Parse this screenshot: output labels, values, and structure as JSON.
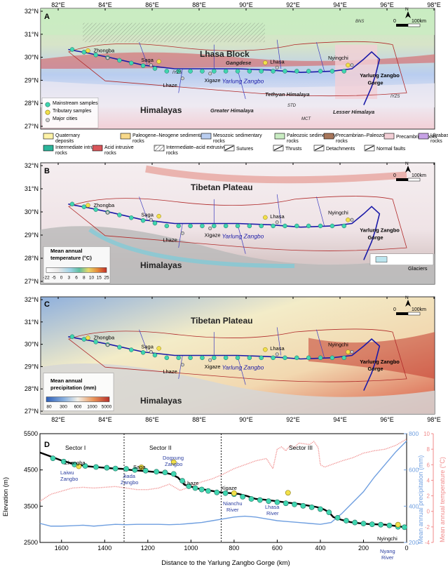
{
  "map_common": {
    "lon_ticks": [
      "82°E",
      "84°E",
      "86°E",
      "88°E",
      "90°E",
      "92°E",
      "94°E",
      "96°E",
      "98°E"
    ],
    "lat_ticks": [
      "32°N",
      "31°N",
      "30°N",
      "29°N",
      "28°N",
      "27°N"
    ],
    "river": "Yarlung Zangbo",
    "gorge": "Yarlung Zangbo Gorge",
    "cities": [
      "Zhongba",
      "Saga",
      "Lhaze",
      "Xigaze",
      "Lhasa",
      "Nyingchi"
    ],
    "scale_zero": "0",
    "scale_label": "100km",
    "north": "N"
  },
  "panel_a": {
    "letter": "A",
    "region_top": "Lhasa Block",
    "region_bottom": "Himalayas",
    "labels": {
      "bns": "BNS",
      "gangdese": "Gangdese",
      "iyzs_w": "IYZS",
      "iyzs_e": "IYZS",
      "tethyan": "Tethyan Himalaya",
      "greater": "Greater Himalaya",
      "lesser": "Lesser Himalaya",
      "std": "STD",
      "mct": "MCT"
    },
    "inset_legend": [
      "Mainstream samples",
      "Tributary samples",
      "Major cities"
    ],
    "legend": [
      {
        "label": "Quaternary deposits",
        "color": "#fff3a8"
      },
      {
        "label": "Paleogene–Neogene sedimentary rocks",
        "color": "#f8d98a"
      },
      {
        "label": "Mesozoic sedimentary rocks",
        "color": "#b9cdf0"
      },
      {
        "label": "Paleozoic sedimentary rocks",
        "color": "#c9ecc2"
      },
      {
        "label": "Precambrian–Paleozoic rocks",
        "color": "#a8765a"
      },
      {
        "label": "Precambrian rocks",
        "color": "#f3cfd6"
      },
      {
        "label": "Ultrabasic–basic igneous rocks",
        "color": "#c7a3e6"
      },
      {
        "label": "Intermediate intrusive rocks",
        "color": "#2bb59a"
      },
      {
        "label": "Acid intrusive rocks",
        "color": "#d9565a"
      },
      {
        "label": "Intermediate–acid extrusive rocks",
        "color": "hatch"
      },
      {
        "label": "Sutures",
        "color": "line"
      },
      {
        "label": "Thrusts",
        "color": "line"
      },
      {
        "label": "Detachments",
        "color": "line"
      },
      {
        "label": "Normal faults",
        "color": "line"
      }
    ]
  },
  "panel_b": {
    "letter": "B",
    "region_top": "Tibetan Plateau",
    "region_bottom": "Himalayas",
    "colorbar_title": "Mean annual temperature (°C)",
    "colorbar_ticks": [
      "-22",
      "-5",
      "0",
      "3",
      "6",
      "8",
      "10",
      "15",
      "25"
    ],
    "glaciers": "Glaciers"
  },
  "panel_c": {
    "letter": "C",
    "region_top": "Tibetan Plateau",
    "region_bottom": "Himalayas",
    "colorbar_title": "Mean annual precipitation (mm)",
    "colorbar_ticks": [
      "80",
      "300",
      "600",
      "1000",
      "5000"
    ]
  },
  "panel_d": {
    "letter": "D",
    "sectors": [
      "Sector I",
      "Sector II",
      "Sector III"
    ],
    "annotations": {
      "zhongba": "Zhongba",
      "laiwu": "Laiwu Zangbo",
      "saga": "Saga",
      "jiada": "Jiada Zangbo",
      "dogxung": "Dogxung Zangbo",
      "lhaze": "Lhaze",
      "xigaze": "Xigaze",
      "nianchu": "Nianchu River",
      "lhasa_r": "Lhasa River",
      "nyingchi": "Nyingchi",
      "nyang": "Nyang River"
    }
  },
  "chart_data": {
    "type": "line",
    "xlabel": "Distance to the Yarlung Zangbo Gorge (km)",
    "ylabel": "Elevation (m)",
    "ylabel_right1": "Mean annual precipitation (mm)",
    "ylabel_right2": "Mean annual temperature (°C)",
    "xlim": [
      1700,
      0
    ],
    "ylim": [
      2500,
      5500
    ],
    "ylim_right1": [
      200,
      800
    ],
    "ylim_right2": [
      -4,
      10
    ],
    "x_ticks": [
      1600,
      1400,
      1200,
      1000,
      800,
      600,
      400,
      200,
      0
    ],
    "y_ticks": [
      2500,
      3500,
      4500,
      5500
    ],
    "y_ticks_right1": [
      200,
      400,
      600,
      800
    ],
    "y_ticks_right2": [
      -4,
      -2,
      0,
      2,
      4,
      6,
      8,
      10
    ],
    "sector_boundaries": [
      1310,
      860
    ],
    "series": [
      {
        "name": "Elevation",
        "color": "#000000",
        "x": [
          1700,
          1650,
          1600,
          1560,
          1520,
          1480,
          1440,
          1400,
          1360,
          1320,
          1280,
          1240,
          1200,
          1160,
          1120,
          1090,
          1060,
          1030,
          1000,
          970,
          940,
          900,
          860,
          820,
          780,
          740,
          700,
          660,
          620,
          580,
          540,
          500,
          460,
          420,
          400,
          380,
          360,
          340,
          300,
          260,
          220,
          180,
          140,
          100,
          60,
          20,
          0
        ],
        "y": [
          4980,
          4870,
          4760,
          4690,
          4640,
          4600,
          4580,
          4560,
          4540,
          4530,
          4500,
          4480,
          4460,
          4440,
          4420,
          4380,
          4290,
          4090,
          4040,
          3990,
          3960,
          3920,
          3880,
          3860,
          3840,
          3780,
          3700,
          3680,
          3650,
          3620,
          3590,
          3560,
          3520,
          3480,
          3450,
          3400,
          3330,
          3200,
          3120,
          3060,
          3030,
          3010,
          3000,
          2990,
          2960,
          2930,
          2910
        ]
      },
      {
        "name": "Mean annual precipitation",
        "color": "#6f9fe0",
        "x": [
          1700,
          1650,
          1600,
          1550,
          1500,
          1450,
          1400,
          1350,
          1300,
          1250,
          1200,
          1150,
          1100,
          1050,
          1000,
          950,
          900,
          850,
          800,
          750,
          700,
          650,
          600,
          550,
          500,
          450,
          400,
          350,
          300,
          250,
          200,
          150,
          100,
          50,
          0
        ],
        "y": [
          305,
          290,
          290,
          292,
          295,
          290,
          295,
          300,
          298,
          300,
          300,
          300,
          298,
          300,
          305,
          310,
          320,
          330,
          340,
          345,
          340,
          330,
          320,
          315,
          310,
          305,
          300,
          310,
          360,
          420,
          480,
          560,
          630,
          700,
          760
        ]
      },
      {
        "name": "Mean annual temperature",
        "color": "#f08a8a",
        "x": [
          1700,
          1650,
          1600,
          1550,
          1500,
          1450,
          1400,
          1350,
          1300,
          1250,
          1200,
          1150,
          1100,
          1050,
          1000,
          950,
          900,
          850,
          800,
          750,
          700,
          650,
          620,
          600,
          580,
          560,
          540,
          520,
          500,
          450,
          430,
          410,
          400,
          380,
          350,
          300,
          250,
          200,
          150,
          100,
          50,
          0
        ],
        "y": [
          1.3,
          2.2,
          2.6,
          3.0,
          3.1,
          3.0,
          3.1,
          3.2,
          3.0,
          2.8,
          2.8,
          3.0,
          3.5,
          2.7,
          3.2,
          3.8,
          4.2,
          4.8,
          5.5,
          6.0,
          6.5,
          6.8,
          5.5,
          8.0,
          8.3,
          7.8,
          8.5,
          8.2,
          8.8,
          8.6,
          9.0,
          8.2,
          6.0,
          5.7,
          6.0,
          6.5,
          6.9,
          7.5,
          7.8,
          8.0,
          8.5,
          9.3
        ]
      }
    ],
    "points": {
      "name": "Mainstream samples",
      "x": [
        1640,
        1590,
        1540,
        1490,
        1440,
        1390,
        1350,
        1300,
        1260,
        1210,
        1160,
        1120,
        1080,
        1040,
        1010,
        980,
        950,
        920,
        880,
        840,
        800,
        760,
        720,
        680,
        640,
        600,
        560,
        520,
        480,
        440,
        400,
        360,
        320,
        280,
        240,
        200,
        160,
        120,
        80,
        40,
        10
      ],
      "y": [
        4820,
        4730,
        4650,
        4610,
        4580,
        4560,
        4540,
        4530,
        4500,
        4480,
        4450,
        4430,
        4390,
        4200,
        4050,
        4000,
        3960,
        3920,
        3880,
        3860,
        3830,
        3760,
        3700,
        3670,
        3640,
        3610,
        3580,
        3550,
        3510,
        3470,
        3420,
        3330,
        3180,
        3100,
        3050,
        3020,
        3000,
        2990,
        2970,
        2930,
        2920
      ]
    },
    "tributary_points": {
      "name": "Tributary samples",
      "x": [
        1520,
        1230,
        1080,
        800,
        550,
        40
      ],
      "y": [
        4600,
        4570,
        4710,
        3860,
        3870,
        2990
      ]
    }
  }
}
